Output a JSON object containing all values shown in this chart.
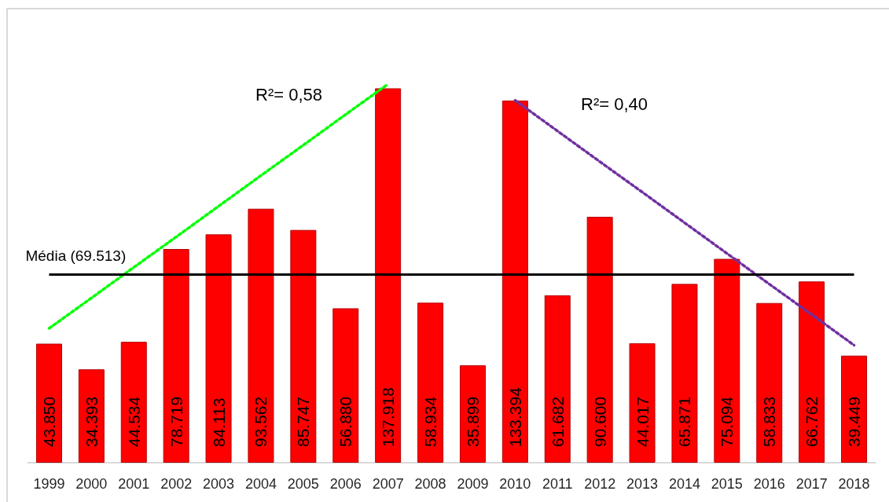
{
  "chart_data": {
    "type": "bar",
    "categories": [
      "1999",
      "2000",
      "2001",
      "2002",
      "2003",
      "2004",
      "2005",
      "2006",
      "2007",
      "2008",
      "2009",
      "2010",
      "2011",
      "2012",
      "2013",
      "2014",
      "2015",
      "2016",
      "2017",
      "2018"
    ],
    "series": [
      {
        "color": "#ff0000",
        "values": [
          43850,
          34393,
          44534,
          78719,
          84113,
          93562,
          85747,
          56880,
          137918,
          58934,
          35899,
          133394,
          61682,
          90600,
          44017,
          65871,
          75094,
          58833,
          66762,
          39449
        ],
        "value_labels": [
          "43.850",
          "34.393",
          "44.534",
          "78.719",
          "84.113",
          "93.562",
          "85.747",
          "56.880",
          "137.918",
          "58.934",
          "35.899",
          "133.394",
          "61.682",
          "90.600",
          "44.017",
          "65.871",
          "75.094",
          "58.833",
          "66.762",
          "39.449"
        ]
      },
      {
        "type": "line",
        "values": [
          49500,
          60700,
          72000,
          83200,
          94500,
          105800,
          117000,
          128300,
          139500,
          null,
          null,
          null,
          null,
          null,
          null,
          null,
          null,
          null,
          null,
          null
        ],
        "color": "#00ff00"
      },
      {
        "type": "line",
        "values": [
          null,
          null,
          null,
          null,
          null,
          null,
          null,
          null,
          null,
          null,
          null,
          133500,
          122200,
          110900,
          99700,
          88400,
          77100,
          65800,
          54600,
          43300
        ],
        "color": "#7030a0"
      }
    ],
    "tick_labels": "x",
    "line_style": "dotted",
    "marker": "none",
    "ref_lines": [
      {
        "axis": "y",
        "value": 69513,
        "label": "Média (69.513)",
        "color": "#000000",
        "line_style": "solid"
      }
    ],
    "annotations": [
      "R²= 0,58",
      "R²= 0,40"
    ]
  }
}
